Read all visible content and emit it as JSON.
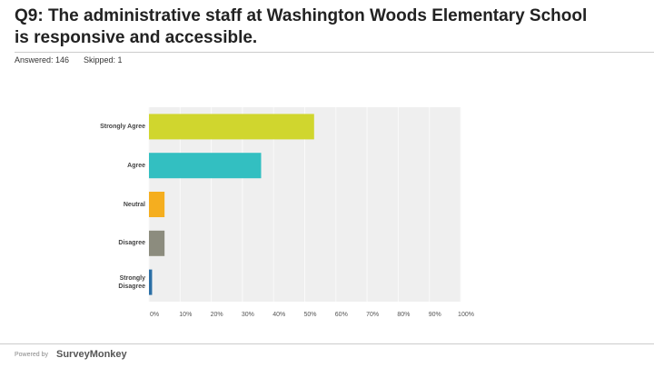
{
  "header": {
    "title": "Q9: The administrative staff at Washington Woods Elementary School is responsive and accessible.",
    "answered": "Answered: 146",
    "skipped": "Skipped: 1"
  },
  "chart_data": {
    "type": "bar",
    "orientation": "horizontal",
    "categories": [
      "Strongly Agree",
      "Agree",
      "Neutral",
      "Disagree",
      "Strongly Disagree"
    ],
    "values": [
      53,
      36,
      5,
      5,
      1
    ],
    "colors": [
      "#d0d62e",
      "#33bfc1",
      "#f5ae1f",
      "#8c8c7e",
      "#2b6fa6"
    ],
    "xlim": [
      0,
      100
    ],
    "xticks": [
      {
        "value": 0,
        "label": "0%"
      },
      {
        "value": 10,
        "label": "10%"
      },
      {
        "value": 20,
        "label": "20%"
      },
      {
        "value": 30,
        "label": "30%"
      },
      {
        "value": 40,
        "label": "40%"
      },
      {
        "value": 50,
        "label": "50%"
      },
      {
        "value": 60,
        "label": "60%"
      },
      {
        "value": 70,
        "label": "70%"
      },
      {
        "value": 80,
        "label": "80%"
      },
      {
        "value": 90,
        "label": "90%"
      },
      {
        "value": 100,
        "label": "100%"
      }
    ],
    "grid": true
  },
  "footer": {
    "powered": "Powered by",
    "brand": "SurveyMonkey"
  }
}
